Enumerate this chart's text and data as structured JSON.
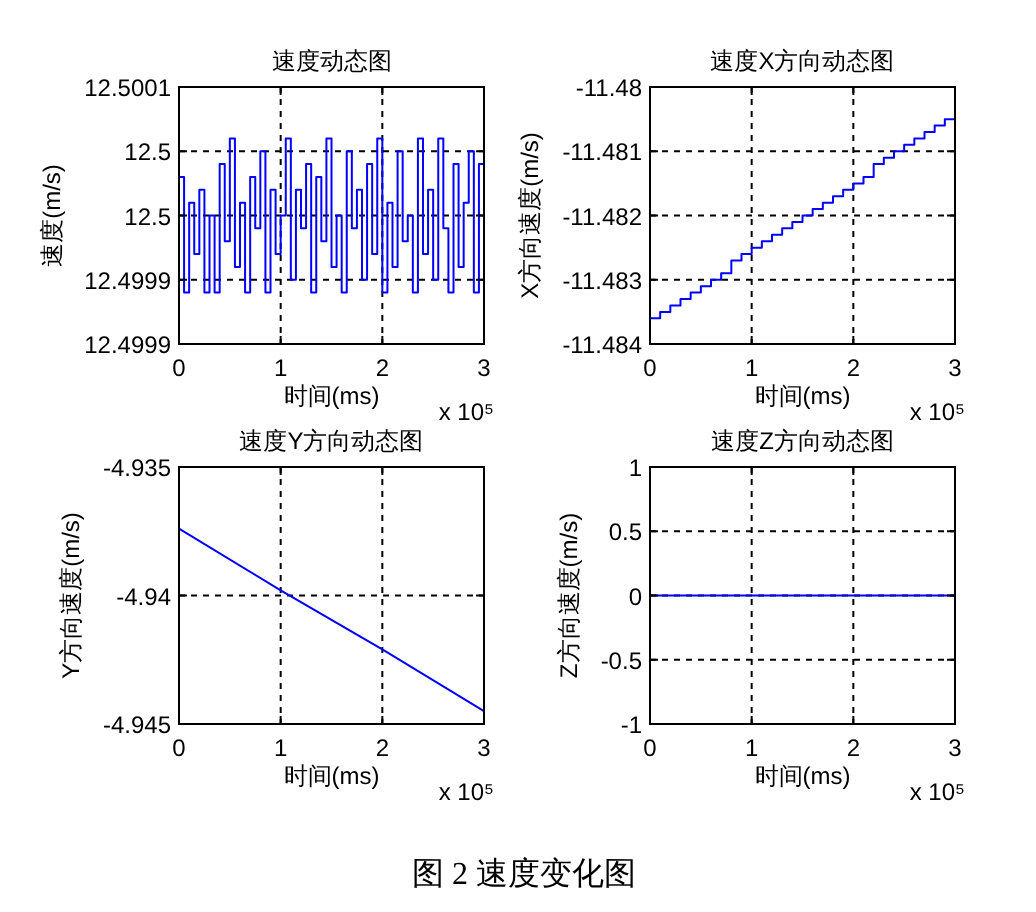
{
  "chart_data": [
    {
      "type": "step",
      "title": "速度动态图",
      "xlabel": "时间(ms)",
      "ylabel": "速度(m/s)",
      "color": "#0000ff",
      "x": [
        0,
        0.05,
        0.1,
        0.15,
        0.2,
        0.25,
        0.3,
        0.35,
        0.4,
        0.45,
        0.5,
        0.55,
        0.6,
        0.65,
        0.7,
        0.75,
        0.8,
        0.85,
        0.9,
        0.95,
        1,
        1.05,
        1.1,
        1.15,
        1.2,
        1.25,
        1.3,
        1.35,
        1.4,
        1.45,
        1.5,
        1.55,
        1.6,
        1.65,
        1.7,
        1.75,
        1.8,
        1.85,
        1.9,
        1.95,
        2,
        2.05,
        2.1,
        2.15,
        2.2,
        2.25,
        2.3,
        2.35,
        2.4,
        2.45,
        2.5,
        2.55,
        2.6,
        2.65,
        2.7,
        2.75,
        2.8,
        2.85,
        2.9,
        2.95,
        3
      ],
      "values": [
        12.50003,
        12.49994,
        12.50001,
        12.49997,
        12.50002,
        12.49994,
        12.5,
        12.49994,
        12.50004,
        12.49998,
        12.50006,
        12.49996,
        12.50001,
        12.49994,
        12.50003,
        12.49999,
        12.50005,
        12.49994,
        12.50002,
        12.49997,
        12.5,
        12.50006,
        12.49995,
        12.50002,
        12.49999,
        12.50004,
        12.49994,
        12.50003,
        12.49998,
        12.50006,
        12.49996,
        12.5,
        12.49994,
        12.50005,
        12.49999,
        12.50002,
        12.49995,
        12.50004,
        12.49997,
        12.50006,
        12.49994,
        12.50001,
        12.49996,
        12.50005,
        12.49998,
        12.5,
        12.49994,
        12.50006,
        12.49997,
        12.50002,
        12.49995,
        12.50006,
        12.49999,
        12.49994,
        12.50004,
        12.49996,
        12.50001,
        12.50005,
        12.49994,
        12.50004,
        12.49999
      ],
      "xlim": [
        0,
        3
      ],
      "xticks": [
        0,
        1,
        2,
        3
      ],
      "ylim": [
        12.4999,
        12.5001
      ],
      "yticks": [
        {
          "value": 12.4999,
          "label": "12.4999"
        },
        {
          "value": 12.49995,
          "label": "12.4999"
        },
        {
          "value": 12.5,
          "label": "12.5"
        },
        {
          "value": 12.50005,
          "label": "12.5"
        },
        {
          "value": 12.5001,
          "label": "12.5001"
        }
      ],
      "grid": true,
      "annotations": [
        "x 10⁵"
      ]
    },
    {
      "type": "step",
      "title": "速度X方向动态图",
      "xlabel": "时间(ms)",
      "ylabel": "X方向速度(m/s)",
      "color": "#0000ff",
      "x": [
        0,
        0.1,
        0.2,
        0.3,
        0.4,
        0.5,
        0.6,
        0.7,
        0.8,
        0.9,
        1,
        1.1,
        1.2,
        1.3,
        1.4,
        1.5,
        1.6,
        1.7,
        1.8,
        1.9,
        2,
        2.1,
        2.2,
        2.3,
        2.4,
        2.5,
        2.6,
        2.7,
        2.8,
        2.9,
        3
      ],
      "values": [
        -11.4836,
        -11.4835,
        -11.4834,
        -11.4833,
        -11.4832,
        -11.4831,
        -11.483,
        -11.4829,
        -11.4827,
        -11.4826,
        -11.4825,
        -11.4824,
        -11.4823,
        -11.4822,
        -11.4821,
        -11.482,
        -11.4819,
        -11.4818,
        -11.4817,
        -11.4816,
        -11.4815,
        -11.4814,
        -11.4812,
        -11.4811,
        -11.481,
        -11.4809,
        -11.4808,
        -11.4807,
        -11.4806,
        -11.4805,
        -11.4804
      ],
      "xlim": [
        0,
        3
      ],
      "xticks": [
        0,
        1,
        2,
        3
      ],
      "ylim": [
        -11.484,
        -11.48
      ],
      "yticks": [
        -11.484,
        -11.483,
        -11.482,
        -11.481,
        -11.48
      ],
      "grid": true,
      "annotations": [
        "x 10⁵"
      ]
    },
    {
      "type": "line",
      "title": "速度Y方向动态图",
      "xlabel": "时间(ms)",
      "ylabel": "Y方向速度(m/s)",
      "color": "#0000ff",
      "x": [
        0,
        1,
        2,
        3
      ],
      "values": [
        -4.9374,
        -4.9398,
        -4.9421,
        -4.9445
      ],
      "xlim": [
        0,
        3
      ],
      "xticks": [
        0,
        1,
        2,
        3
      ],
      "ylim": [
        -4.945,
        -4.935
      ],
      "yticks": [
        -4.945,
        -4.94,
        -4.935
      ],
      "grid": true,
      "annotations": [
        "x 10⁵"
      ]
    },
    {
      "type": "line",
      "title": "速度Z方向动态图",
      "xlabel": "时间(ms)",
      "ylabel": "Z方向速度(m/s)",
      "color": "#0000ff",
      "x": [
        0,
        3
      ],
      "values": [
        0,
        0
      ],
      "xlim": [
        0,
        3
      ],
      "xticks": [
        0,
        1,
        2,
        3
      ],
      "ylim": [
        -1,
        1
      ],
      "yticks": [
        -1,
        -0.5,
        0,
        0.5,
        1
      ],
      "grid": true,
      "annotations": [
        "x 10⁵",
        "图 2  速度变化图"
      ]
    }
  ]
}
